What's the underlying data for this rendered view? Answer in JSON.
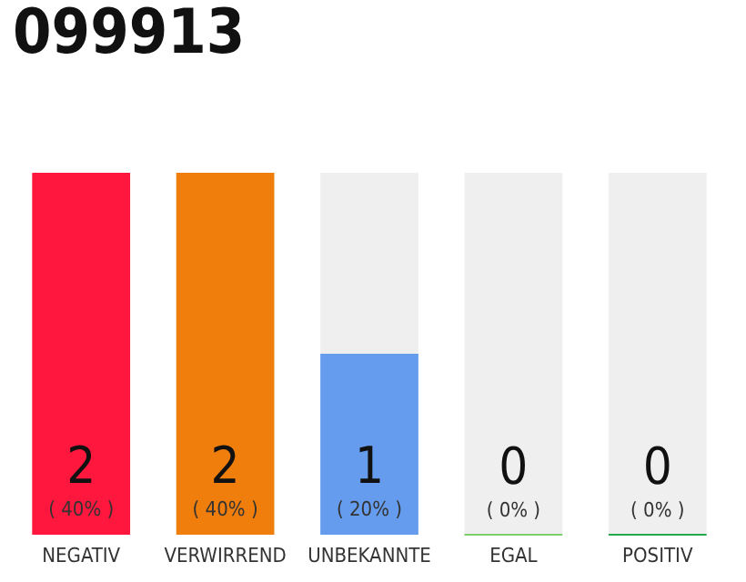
{
  "chart_data": {
    "type": "bar",
    "title": "099913",
    "categories": [
      "NEGATIV",
      "VERWIRREND",
      "UNBEKANNTE",
      "EGAL",
      "POSITIV"
    ],
    "values": [
      2,
      2,
      1,
      0,
      0
    ],
    "colors": [
      "#ff173d",
      "#f07e0c",
      "#659cee",
      "#7ccf6a",
      "#22aa4a"
    ],
    "value_labels": [
      "2\n( 40% )",
      "2\n( 40% )",
      "1\n( 20% )",
      "0\n( 0% )",
      "0\n( 0% )"
    ]
  }
}
